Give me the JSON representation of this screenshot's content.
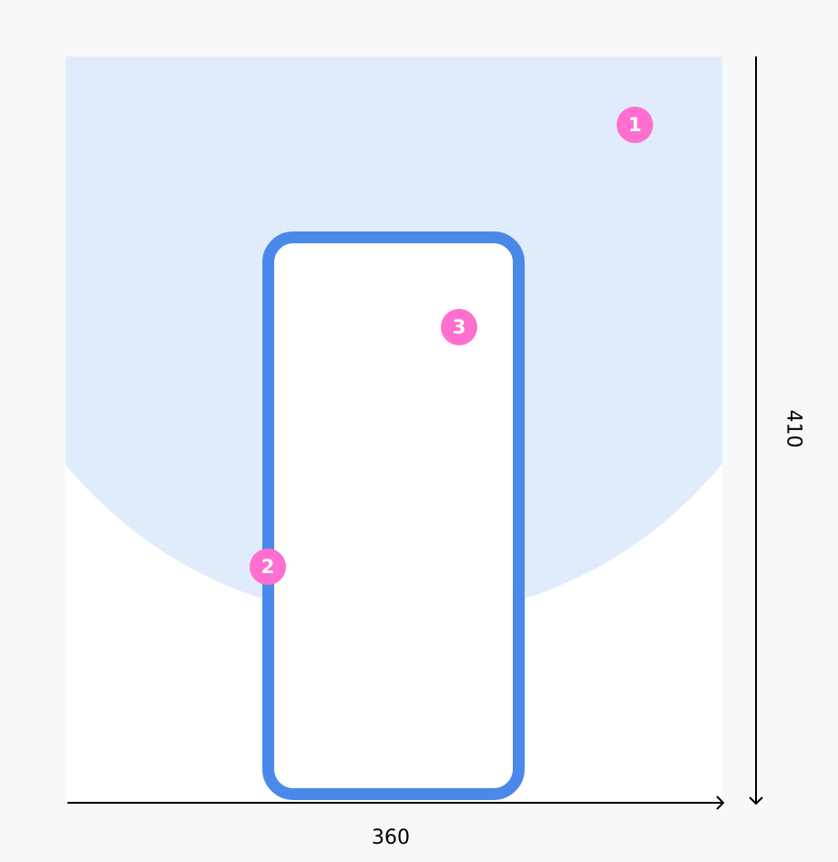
{
  "diagram": {
    "width_label": "360",
    "height_label": "410",
    "colors": {
      "zone": "#e0ecfc",
      "phone_outline": "#4a89ea",
      "badge": "#ff6fcf",
      "background": "#f8f8f8"
    },
    "badges": [
      {
        "label": "1",
        "target": "circular-zone"
      },
      {
        "label": "2",
        "target": "phone-outline"
      },
      {
        "label": "3",
        "target": "phone-screen"
      }
    ]
  }
}
